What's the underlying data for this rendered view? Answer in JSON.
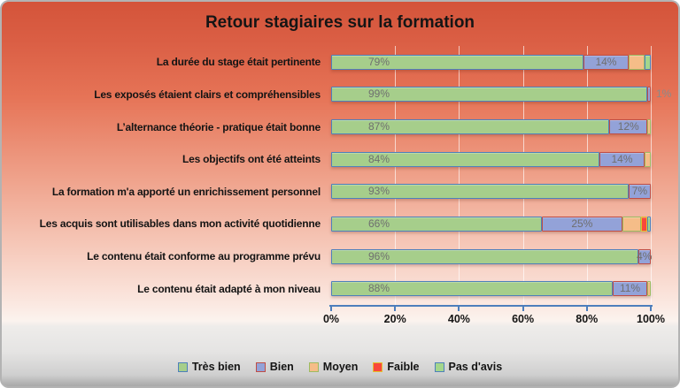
{
  "chart_data": {
    "type": "bar",
    "orientation": "horizontal-stacked",
    "title": "Retour stagiaires sur la formation",
    "categories": [
      "La durée du stage était pertinente",
      "Les exposés étaient clairs et compréhensibles",
      "L’alternance théorie - pratique était bonne",
      "Les objectifs ont été atteints",
      "La formation m'a apporté un enrichissement personnel",
      "Les acquis sont utilisables dans mon activité quotidienne",
      "Le contenu était conforme au programme prévu",
      "Le contenu était adapté à mon niveau"
    ],
    "series": [
      {
        "name": "Très bien",
        "fill": "#a6ce8b",
        "border": "#4e80bb",
        "values": [
          79,
          99,
          87,
          84,
          93,
          66,
          96,
          88
        ],
        "show_labels": true,
        "label_position": "inside-base"
      },
      {
        "name": "Bien",
        "fill": "#93a2d8",
        "border": "#bf4d45",
        "values": [
          14,
          1,
          12,
          14,
          7,
          25,
          4,
          11
        ],
        "show_labels": true,
        "label_position": "center"
      },
      {
        "name": "Moyen",
        "fill": "#f5bd88",
        "border": "#9dbb61",
        "values": [
          5,
          0,
          1,
          2,
          0,
          6,
          0,
          1
        ],
        "show_labels": false
      },
      {
        "name": "Faible",
        "fill": "#f9483b",
        "border": "#e3c02f",
        "values": [
          0,
          0,
          0,
          0,
          0,
          2,
          0,
          0
        ],
        "show_labels": false
      },
      {
        "name": "Pas d'avis",
        "fill": "#a4d68c",
        "border": "#4e80bb",
        "values": [
          2,
          0,
          0,
          0,
          0,
          1,
          0,
          0
        ],
        "show_labels": false
      }
    ],
    "xlim": [
      0,
      100
    ],
    "xticks": [
      "0%",
      "20%",
      "40%",
      "60%",
      "80%",
      "100%"
    ],
    "gridlines": true,
    "legend_position": "bottom",
    "unit": "%",
    "data_label_color": "#6f6f6f",
    "axis_color": "#4d7ebc"
  }
}
